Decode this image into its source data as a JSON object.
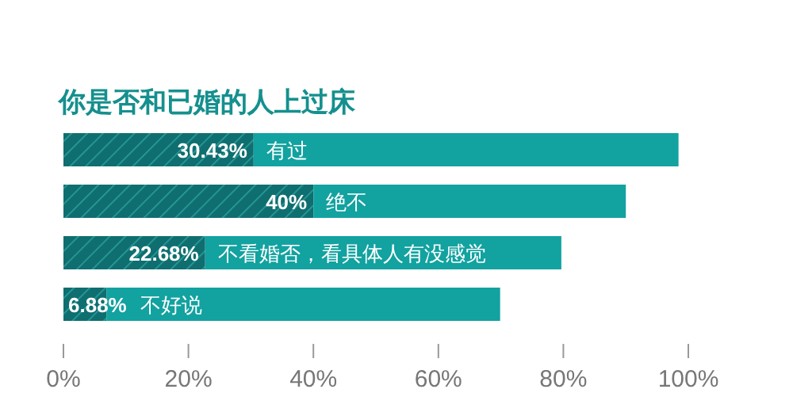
{
  "chart_data": {
    "type": "bar",
    "orientation": "horizontal",
    "stacked": true,
    "title": "你是否和已婚的人上过床",
    "categories": [
      "有过",
      "绝不",
      "不看婚否，看具体人有没感觉",
      "不好说"
    ],
    "series": [
      {
        "color": "#0f6e70",
        "values": [
          30.43,
          40,
          22.68,
          6.88
        ],
        "value_labels": [
          "30.43%",
          "40%",
          "22.68%",
          "6.88%"
        ]
      },
      {
        "color": "#12a2a0",
        "values": [
          68,
          50,
          57,
          63
        ]
      }
    ],
    "xlim": [
      0,
      100
    ],
    "xticks": [
      {
        "value": 0,
        "label": "0%"
      },
      {
        "value": 20,
        "label": "20%"
      },
      {
        "value": 40,
        "label": "40%"
      },
      {
        "value": 60,
        "label": "60%"
      },
      {
        "value": 80,
        "label": "80%"
      },
      {
        "value": 100,
        "label": "100%"
      }
    ],
    "grid": false
  }
}
